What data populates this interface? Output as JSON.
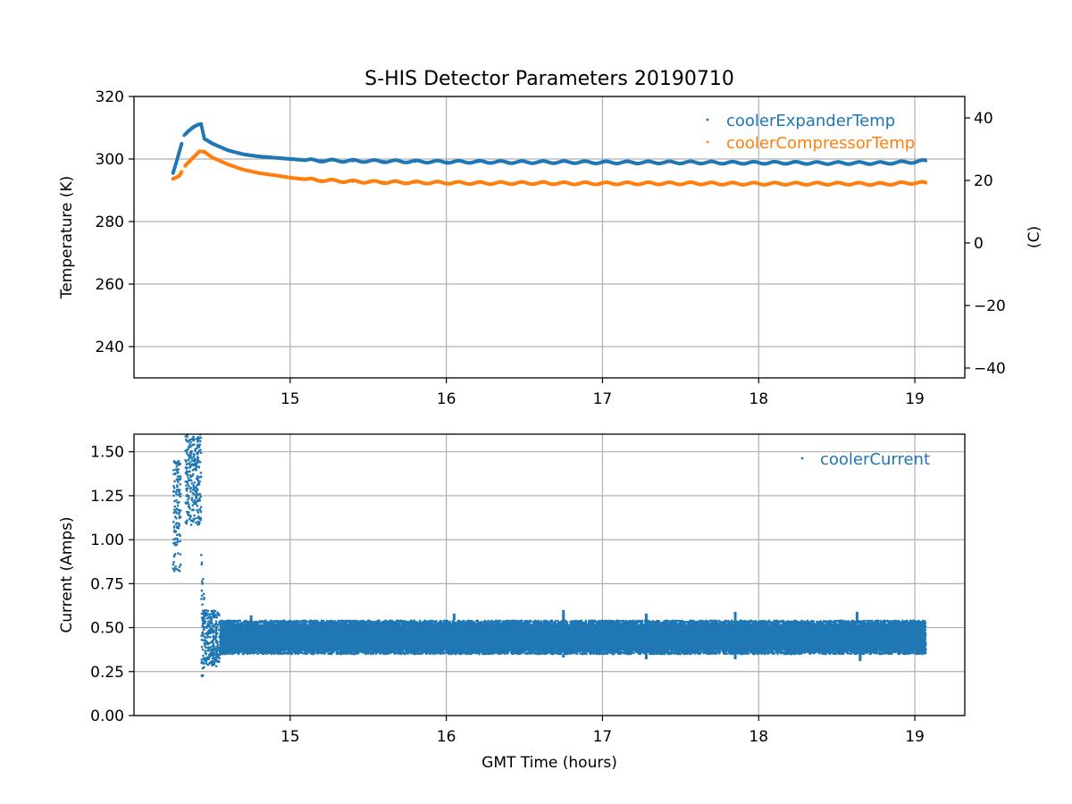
{
  "figure": {
    "title": "S-HIS Detector Parameters 20190710",
    "colors": {
      "blue": "#1f77b4",
      "orange": "#ff7f0e",
      "grid": "#b0b0b0"
    }
  },
  "chart_data": [
    {
      "type": "scatter",
      "title": "S-HIS Detector Parameters 20190710",
      "xlabel": "",
      "ylabel": "Temperature (K)",
      "y2label": "(C)",
      "xlim": [
        14.0,
        19.32
      ],
      "ylim": [
        230,
        320
      ],
      "y2lim": [
        -43.15,
        46.85
      ],
      "xticks": [
        "15",
        "16",
        "17",
        "18",
        "19"
      ],
      "xtick_values": [
        15,
        16,
        17,
        18,
        19
      ],
      "yticks": [
        "240",
        "260",
        "280",
        "300",
        "320"
      ],
      "ytick_values": [
        240,
        260,
        280,
        300,
        320
      ],
      "y2ticks": [
        "−40",
        "−20",
        "0",
        "20",
        "40"
      ],
      "y2tick_values": [
        -40,
        -20,
        0,
        20,
        40
      ],
      "grid": true,
      "legend_position": "top-right",
      "series": [
        {
          "name": "coolerExpanderTemp",
          "color": "#1f77b4",
          "x": [
            14.25,
            14.27,
            14.3,
            14.32,
            14.35,
            14.38,
            14.41,
            14.43,
            14.45,
            14.5,
            14.6,
            14.7,
            14.8,
            14.9,
            15.0,
            15.1,
            15.2,
            15.4,
            15.6,
            15.8,
            16.0,
            16.2,
            16.4,
            16.6,
            16.8,
            17.0,
            17.2,
            17.4,
            17.6,
            17.8,
            18.0,
            18.2,
            18.4,
            18.6,
            18.8,
            19.0,
            19.07
          ],
          "y": [
            295.5,
            298.8,
            304.0,
            307.5,
            309.0,
            310.2,
            311.0,
            311.2,
            306.5,
            305.0,
            302.8,
            301.5,
            300.8,
            300.4,
            300.0,
            299.6,
            299.5,
            299.4,
            299.3,
            299.2,
            299.1,
            299.1,
            299.0,
            299.0,
            299.0,
            298.9,
            298.9,
            298.9,
            298.9,
            298.8,
            298.8,
            298.8,
            298.7,
            298.7,
            298.7,
            299.1,
            299.4
          ]
        },
        {
          "name": "coolerCompressorTemp",
          "color": "#ff7f0e",
          "x": [
            14.25,
            14.27,
            14.29,
            14.33,
            14.38,
            14.42,
            14.45,
            14.5,
            14.6,
            14.7,
            14.8,
            14.9,
            15.0,
            15.1,
            15.2,
            15.4,
            15.6,
            15.8,
            16.0,
            16.2,
            16.4,
            16.6,
            16.8,
            17.0,
            17.2,
            17.4,
            17.6,
            17.8,
            18.0,
            18.2,
            18.4,
            18.6,
            18.8,
            19.0,
            19.07
          ],
          "y": [
            293.7,
            294.1,
            294.6,
            298.0,
            300.5,
            302.5,
            302.3,
            300.5,
            298.3,
            296.6,
            295.5,
            294.8,
            294.0,
            293.5,
            293.2,
            292.8,
            292.6,
            292.5,
            292.4,
            292.3,
            292.3,
            292.3,
            292.2,
            292.2,
            292.2,
            292.2,
            292.2,
            292.1,
            292.1,
            292.1,
            292.1,
            292.1,
            292.0,
            292.4,
            292.3
          ]
        }
      ]
    },
    {
      "type": "scatter",
      "title": "",
      "xlabel": "GMT Time (hours)",
      "ylabel": "Current (Amps)",
      "xlim": [
        14.0,
        19.32
      ],
      "ylim": [
        0.0,
        1.6
      ],
      "xticks": [
        "15",
        "16",
        "17",
        "18",
        "19"
      ],
      "xtick_values": [
        15,
        16,
        17,
        18,
        19
      ],
      "yticks": [
        "0.00",
        "0.25",
        "0.50",
        "0.75",
        "1.00",
        "1.25",
        "1.50"
      ],
      "ytick_values": [
        0.0,
        0.25,
        0.5,
        0.75,
        1.0,
        1.25,
        1.5
      ],
      "grid": true,
      "legend_position": "top-right",
      "series": [
        {
          "name": "coolerCurrent",
          "color": "#1f77b4",
          "bands": [
            {
              "x": [
                14.25,
                14.3
              ],
              "y": [
                0.82,
                1.45
              ]
            },
            {
              "x": [
                14.33,
                14.43
              ],
              "y": [
                1.08,
                1.6
              ]
            },
            {
              "x": [
                14.43,
                14.46
              ],
              "y": [
                0.15,
                0.95
              ]
            },
            {
              "x": [
                14.46,
                14.55
              ],
              "y": [
                0.28,
                0.6
              ]
            },
            {
              "x": [
                14.55,
                19.07
              ],
              "y": [
                0.35,
                0.54
              ]
            }
          ],
          "spikes": [
            {
              "x": 14.75,
              "y": 0.57
            },
            {
              "x": 16.05,
              "y": 0.58
            },
            {
              "x": 16.75,
              "y": 0.6
            },
            {
              "x": 17.28,
              "y": 0.58
            },
            {
              "x": 17.85,
              "y": 0.59
            },
            {
              "x": 18.63,
              "y": 0.59
            }
          ],
          "dips": [
            {
              "x": 16.75,
              "y": 0.33
            },
            {
              "x": 17.28,
              "y": 0.32
            },
            {
              "x": 17.85,
              "y": 0.32
            },
            {
              "x": 18.65,
              "y": 0.31
            }
          ]
        }
      ]
    }
  ]
}
